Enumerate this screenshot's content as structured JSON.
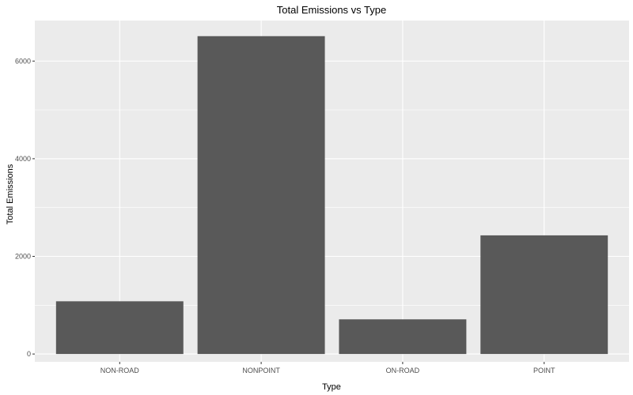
{
  "chart_data": {
    "type": "bar",
    "title": "Total Emissions vs Type",
    "xlabel": "Type",
    "ylabel": "Total Emissions",
    "categories": [
      "NON-ROAD",
      "NONPOINT",
      "ON-ROAD",
      "POINT"
    ],
    "values": [
      1080,
      6510,
      710,
      2430
    ],
    "ylim": [
      -160,
      6830
    ],
    "yticks": [
      0,
      2000,
      4000,
      6000
    ],
    "ytick_labels": [
      "0",
      "2000",
      "4000",
      "6000"
    ],
    "grid": true,
    "legend": "none",
    "colors": {
      "panel": "#ebebeb",
      "grid_major": "#ffffff",
      "bar": "#595959",
      "tick": "#333333"
    }
  }
}
